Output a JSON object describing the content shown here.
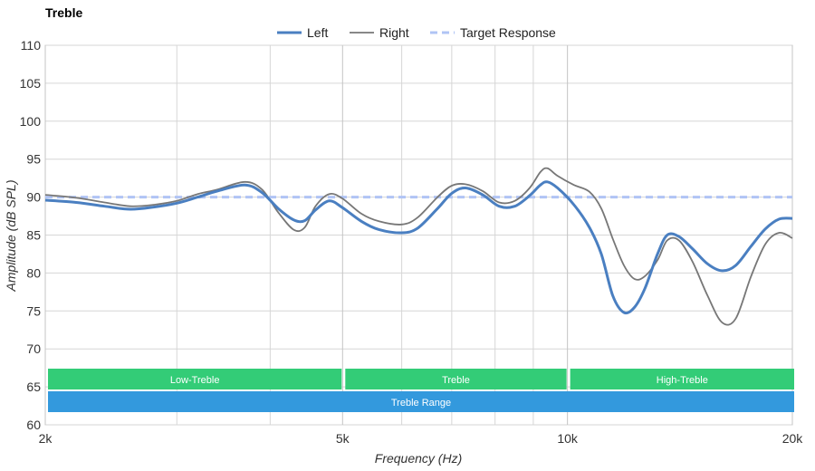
{
  "chart_data": {
    "type": "line",
    "title": "Treble",
    "xlabel": "Frequency (Hz)",
    "ylabel": "Amplitude (dB SPL)",
    "x_scale": "log",
    "xlim": [
      2000,
      20000
    ],
    "ylim": [
      60,
      110
    ],
    "grid": true,
    "legend_position": "top-center",
    "x_ticks": [
      {
        "value": 2000,
        "label": "2k"
      },
      {
        "value": 5000,
        "label": "5k"
      },
      {
        "value": 10000,
        "label": "10k"
      },
      {
        "value": 20000,
        "label": "20k"
      }
    ],
    "x_minor_gridlines": [
      3000,
      4000,
      6000,
      7000,
      8000,
      9000
    ],
    "y_ticks": [
      60,
      65,
      70,
      75,
      80,
      85,
      90,
      95,
      100,
      105,
      110
    ],
    "series": [
      {
        "name": "Left",
        "color": "#4a7fc1",
        "style": "solid",
        "points": [
          [
            2000,
            89.6
          ],
          [
            2200,
            89.3
          ],
          [
            2400,
            88.8
          ],
          [
            2600,
            88.4
          ],
          [
            2800,
            88.7
          ],
          [
            3000,
            89.2
          ],
          [
            3200,
            90.0
          ],
          [
            3400,
            90.8
          ],
          [
            3700,
            91.6
          ],
          [
            3900,
            90.6
          ],
          [
            4100,
            88.5
          ],
          [
            4300,
            87.0
          ],
          [
            4450,
            86.9
          ],
          [
            4600,
            88.3
          ],
          [
            4800,
            89.5
          ],
          [
            5000,
            88.6
          ],
          [
            5300,
            86.8
          ],
          [
            5600,
            85.7
          ],
          [
            6000,
            85.3
          ],
          [
            6300,
            85.9
          ],
          [
            6700,
            88.5
          ],
          [
            7000,
            90.5
          ],
          [
            7300,
            91.2
          ],
          [
            7700,
            90.3
          ],
          [
            8100,
            88.8
          ],
          [
            8500,
            88.8
          ],
          [
            8900,
            90.2
          ],
          [
            9200,
            91.6
          ],
          [
            9400,
            92.0
          ],
          [
            9700,
            91.2
          ],
          [
            10200,
            89.0
          ],
          [
            10700,
            86.0
          ],
          [
            11100,
            82.5
          ],
          [
            11500,
            77.0
          ],
          [
            11900,
            74.8
          ],
          [
            12300,
            75.5
          ],
          [
            12700,
            78.0
          ],
          [
            13200,
            82.5
          ],
          [
            13600,
            85.0
          ],
          [
            14100,
            84.8
          ],
          [
            14700,
            83.2
          ],
          [
            15400,
            81.2
          ],
          [
            16100,
            80.3
          ],
          [
            16800,
            81.0
          ],
          [
            17600,
            83.5
          ],
          [
            18400,
            85.8
          ],
          [
            19200,
            87.1
          ],
          [
            20000,
            87.2
          ]
        ]
      },
      {
        "name": "Right",
        "color": "#777777",
        "style": "solid",
        "points": [
          [
            2000,
            90.3
          ],
          [
            2200,
            89.9
          ],
          [
            2400,
            89.3
          ],
          [
            2600,
            88.8
          ],
          [
            2800,
            89.0
          ],
          [
            3000,
            89.5
          ],
          [
            3200,
            90.4
          ],
          [
            3400,
            91.0
          ],
          [
            3700,
            92.0
          ],
          [
            3900,
            91.0
          ],
          [
            4100,
            88.0
          ],
          [
            4300,
            85.7
          ],
          [
            4450,
            86.0
          ],
          [
            4600,
            88.8
          ],
          [
            4800,
            90.4
          ],
          [
            5000,
            89.8
          ],
          [
            5300,
            87.8
          ],
          [
            5600,
            86.8
          ],
          [
            6000,
            86.4
          ],
          [
            6300,
            87.3
          ],
          [
            6700,
            90.0
          ],
          [
            7000,
            91.5
          ],
          [
            7300,
            91.7
          ],
          [
            7700,
            90.8
          ],
          [
            8100,
            89.3
          ],
          [
            8500,
            89.5
          ],
          [
            8900,
            91.2
          ],
          [
            9200,
            93.3
          ],
          [
            9400,
            93.8
          ],
          [
            9700,
            92.8
          ],
          [
            10200,
            91.6
          ],
          [
            10700,
            90.7
          ],
          [
            11100,
            88.5
          ],
          [
            11500,
            84.5
          ],
          [
            11900,
            81.0
          ],
          [
            12300,
            79.2
          ],
          [
            12700,
            79.6
          ],
          [
            13200,
            81.7
          ],
          [
            13600,
            84.3
          ],
          [
            14100,
            84.3
          ],
          [
            14700,
            81.5
          ],
          [
            15400,
            77.0
          ],
          [
            16100,
            73.5
          ],
          [
            16800,
            74.0
          ],
          [
            17600,
            79.5
          ],
          [
            18400,
            83.8
          ],
          [
            19200,
            85.3
          ],
          [
            20000,
            84.6
          ]
        ]
      },
      {
        "name": "Target Response",
        "color": "#b0c4f5",
        "style": "dashed",
        "points": [
          [
            2000,
            90.0
          ],
          [
            20000,
            90.0
          ]
        ]
      }
    ],
    "bands": [
      {
        "label": "Low-Treble",
        "x_start": 2000,
        "x_end": 5000,
        "row": 1,
        "color": "#33cc77"
      },
      {
        "label": "Treble",
        "x_start": 5000,
        "x_end": 10000,
        "row": 1,
        "color": "#33cc77"
      },
      {
        "label": "High-Treble",
        "x_start": 10000,
        "x_end": 20000,
        "row": 1,
        "color": "#33cc77"
      },
      {
        "label": "Treble Range",
        "x_start": 2000,
        "x_end": 20000,
        "row": 2,
        "color": "#3399dd"
      }
    ]
  }
}
